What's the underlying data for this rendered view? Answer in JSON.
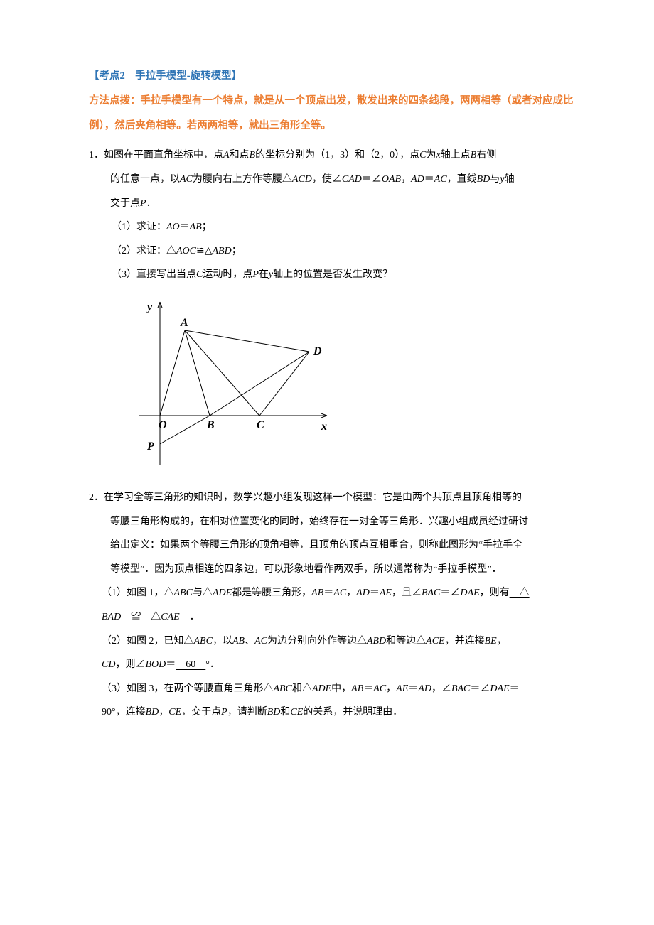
{
  "heading": {
    "title": "【考点2　手拉手模型-旋转模型】"
  },
  "method": {
    "text": "方法点拨：手拉手模型有一个特点，就是从一个顶点出发，散发出来的四条线段，两两相等（或者对应成比例），然后夹角相等。若两两相等，就出三角形全等。"
  },
  "problem1": {
    "num": "1．",
    "line1a": "如图在平面直角坐标中，点",
    "line1b": "和点",
    "line1c": "的坐标分别为（1，3）和（2，0），点",
    "line1d": "为",
    "line1e": "轴上点",
    "line1f": "右侧",
    "line2a": "的任意一点，以",
    "line2b": "为腰向右上方作等腰△",
    "line2c": "，使∠",
    "line2d": "＝∠",
    "line2e": "，",
    "line2f": "＝",
    "line2g": "，直线",
    "line2h": "与",
    "line2i": "轴",
    "line3": "交于点",
    "line3b": "．",
    "sub1a": "（1）求证：",
    "sub1b": "＝",
    "sub1c": "；",
    "sub2a": "（2）求证：△",
    "sub2b": "≌△",
    "sub2c": "；",
    "sub3a": "（3）直接写出当点",
    "sub3b": "运动时，点",
    "sub3c": "在",
    "sub3d": "轴上的位置是否发生改变？"
  },
  "figure": {
    "labels": {
      "y": "y",
      "x": "x",
      "O": "O",
      "A": "A",
      "B": "B",
      "C": "C",
      "D": "D",
      "P": "P"
    },
    "points": {
      "O": [
        40,
        175
      ],
      "A": [
        75,
        55
      ],
      "B": [
        110,
        175
      ],
      "C": [
        180,
        175
      ],
      "D": [
        250,
        85
      ],
      "P": [
        40,
        215
      ]
    },
    "axes": {
      "x_end": [
        275,
        175
      ],
      "y_end": [
        40,
        15
      ]
    },
    "stroke": "#000000",
    "stroke_width": 1,
    "font_family": "Times New Roman",
    "label_fontsize": 16
  },
  "problem2": {
    "num": "2．",
    "line1": "在学习全等三角形的知识时，数学兴趣小组发现这样一个模型：它是由两个共顶点且顶角相等的",
    "line2": "等腰三角形构成的，在相对位置变化的同时，始终存在一对全等三角形．兴趣小组成员经过研讨",
    "line3": "给出定义：如果两个等腰三角形的顶角相等，且顶角的顶点互相重合，则称此图形为“手拉手全",
    "line4": "等模型”．因为顶点相连的四条边，可以形象地看作两双手，所以通常称为“手拉手模型”．",
    "sub1a": "（1）如图 1，△",
    "sub1b": "与△",
    "sub1c": "都是等腰三角形，",
    "sub1d": "＝",
    "sub1e": "，",
    "sub1f": "＝",
    "sub1g": "，且∠",
    "sub1h": "＝∠",
    "sub1i": "，则有",
    "blank1a": "　△",
    "blank1b": "BAD",
    "mid": "≌",
    "blank1c": "　△",
    "blank1d": "CAE",
    "blank1e": "　",
    "period": "．",
    "sub2a": "（2）如图 2，已知△",
    "sub2b": "，以",
    "sub2c": "、",
    "sub2d": "为边分别向外作等边△",
    "sub2e": "和等边△",
    "sub2f": "，并连接",
    "sub2g": "，",
    "sub2ln2a": "，则∠",
    "sub2ln2b": "＝",
    "blank2": "　60　",
    "sub2ln2c": "°．",
    "sub3a": "（3）如图 3，在两个等腰直角三角形△",
    "sub3b": "和△",
    "sub3c": "中，",
    "sub3d": "＝",
    "sub3e": "，",
    "sub3f": "＝",
    "sub3g": "，∠",
    "sub3h": "＝∠",
    "sub3i": "＝",
    "sub3ln2a": "90°，连接",
    "sub3ln2b": "，",
    "sub3ln2c": "，交于点",
    "sub3ln2d": "，请判断",
    "sub3ln2e": "和",
    "sub3ln2f": "的关系，并说明理由．"
  }
}
